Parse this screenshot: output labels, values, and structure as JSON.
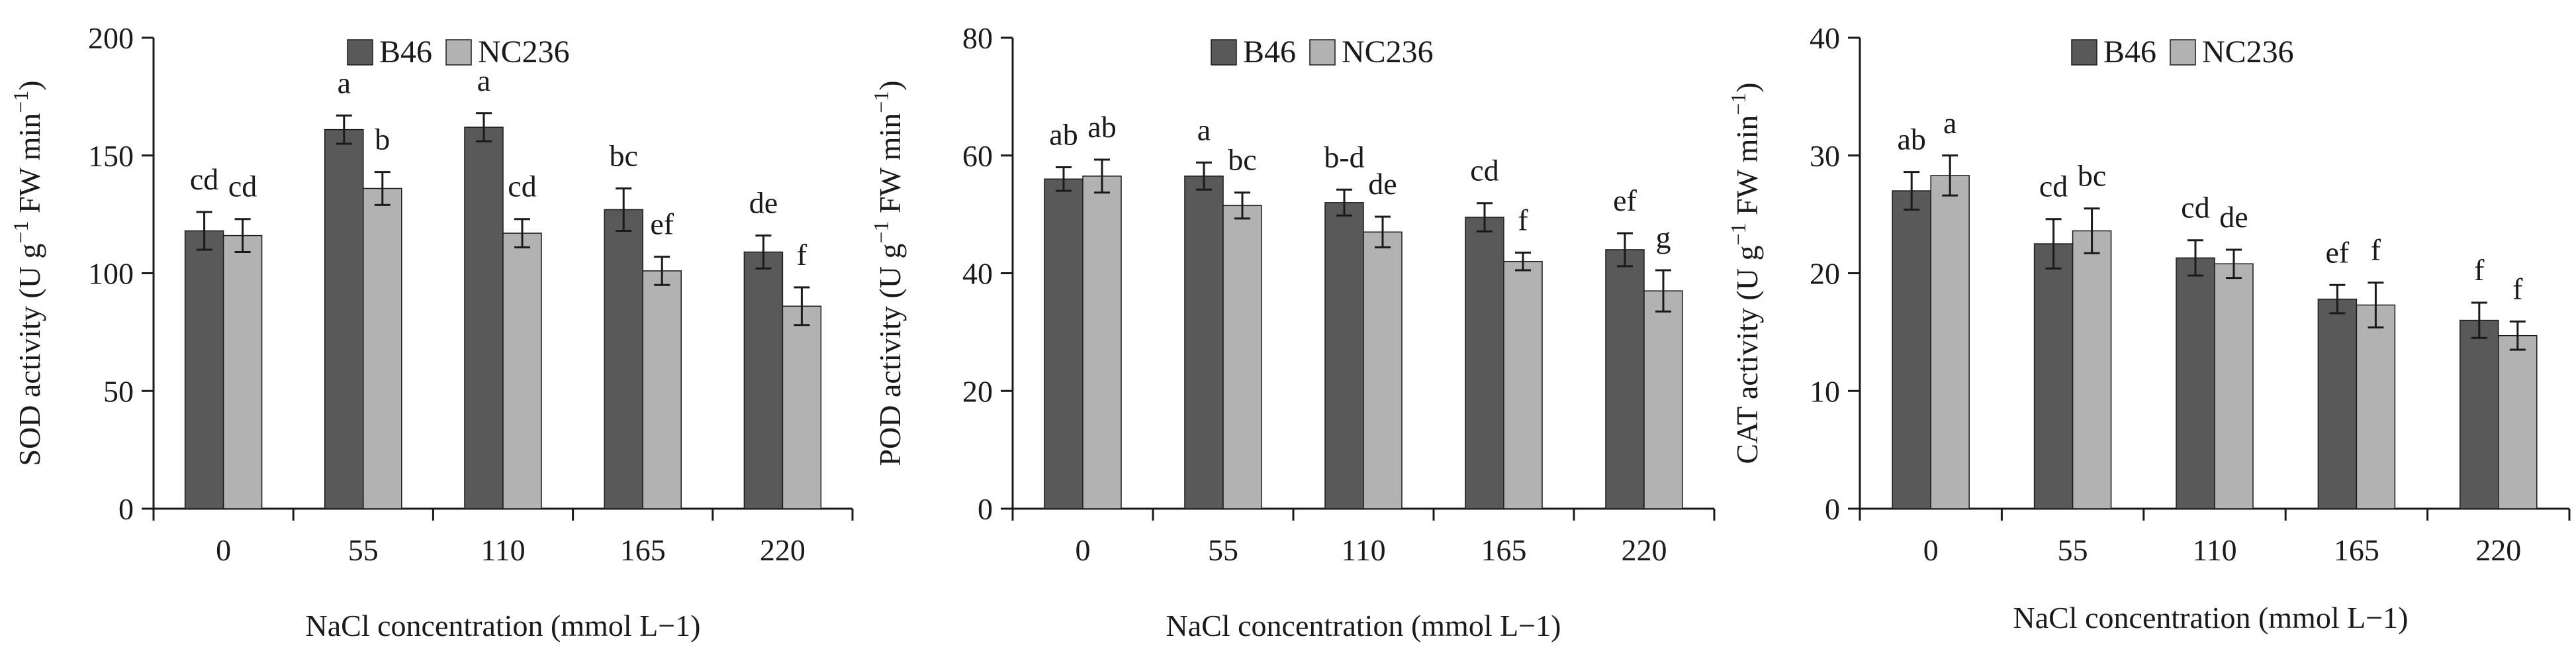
{
  "chart_data": [
    {
      "type": "bar",
      "title": "",
      "xlabel": "NaCl concentration (mmol L−1)",
      "ylabel": {
        "main": "SOD activity (U g",
        "exp1": "−1",
        "mid": " FW min",
        "exp2": "−1",
        "end": ")"
      },
      "categories": [
        "0",
        "55",
        "110",
        "165",
        "220"
      ],
      "ylim": [
        0,
        200
      ],
      "yticks": [
        0,
        50,
        100,
        150,
        200
      ],
      "series": [
        {
          "name": "B46",
          "color": "#595959",
          "values": [
            118,
            161,
            162,
            127,
            109
          ],
          "errors": [
            8,
            6,
            6,
            9,
            7
          ],
          "letters": [
            "cd",
            "a",
            "a",
            "bc",
            "de"
          ]
        },
        {
          "name": "NC236",
          "color": "#b2b2b2",
          "values": [
            116,
            136,
            117,
            101,
            86
          ],
          "errors": [
            7,
            7,
            6,
            6,
            8
          ],
          "letters": [
            "cd",
            "b",
            "cd",
            "ef",
            "f"
          ]
        }
      ],
      "legend_position": "top"
    },
    {
      "type": "bar",
      "title": "",
      "xlabel": "NaCl concentration (mmol L−1)",
      "ylabel": {
        "main": "POD activity (U g",
        "exp1": "−1",
        "mid": " FW min",
        "exp2": "−1",
        "end": ")"
      },
      "categories": [
        "0",
        "55",
        "110",
        "165",
        "220"
      ],
      "ylim": [
        0,
        80
      ],
      "yticks": [
        0,
        20,
        40,
        60,
        80
      ],
      "series": [
        {
          "name": "B46",
          "color": "#595959",
          "values": [
            56,
            56.5,
            52,
            49.5,
            44
          ],
          "errors": [
            2,
            2.3,
            2.2,
            2.4,
            2.8
          ],
          "letters": [
            "ab",
            "a",
            "b-d",
            "cd",
            "ef"
          ]
        },
        {
          "name": "NC236",
          "color": "#b2b2b2",
          "values": [
            56.5,
            51.5,
            47,
            42,
            37
          ],
          "errors": [
            2.8,
            2.2,
            2.6,
            1.5,
            3.5
          ],
          "letters": [
            "ab",
            "bc",
            "de",
            "f",
            "g"
          ]
        }
      ],
      "legend_position": "top"
    },
    {
      "type": "bar",
      "title": "",
      "xlabel": "NaCl concentration (mmol L−1)",
      "ylabel": {
        "main": "CAT activity (U g",
        "exp1": "−1",
        "mid": " FW min",
        "exp2": "−1",
        "end": ")"
      },
      "categories": [
        "0",
        "55",
        "110",
        "165",
        "220"
      ],
      "ylim": [
        0,
        40
      ],
      "yticks": [
        0,
        10,
        20,
        30,
        40
      ],
      "series": [
        {
          "name": "B46",
          "color": "#595959",
          "values": [
            27,
            22.5,
            21.3,
            17.8,
            16
          ],
          "errors": [
            1.6,
            2.1,
            1.5,
            1.2,
            1.5
          ],
          "letters": [
            "ab",
            "cd",
            "cd",
            "ef",
            "f"
          ]
        },
        {
          "name": "NC236",
          "color": "#b2b2b2",
          "values": [
            28.3,
            23.6,
            20.8,
            17.3,
            14.7
          ],
          "errors": [
            1.7,
            1.9,
            1.2,
            1.9,
            1.2
          ],
          "letters": [
            "a",
            "bc",
            "de",
            "f",
            "f"
          ]
        }
      ],
      "legend_position": "top"
    }
  ]
}
